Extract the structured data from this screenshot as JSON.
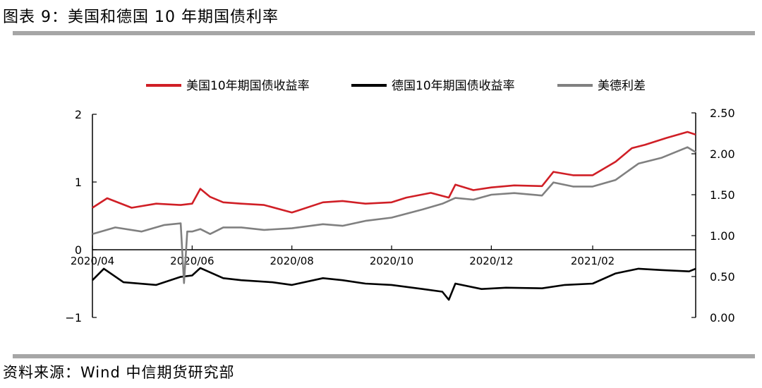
{
  "header": {
    "title": "图表 9：美国和德国 10 年期国债利率"
  },
  "footer": {
    "source": "资料来源：Wind 中信期货研究部"
  },
  "colors": {
    "us": "#d01f26",
    "de": "#000000",
    "spread": "#808080",
    "rule": "#a6a6a6"
  },
  "chart_data": {
    "type": "line",
    "series": [
      {
        "name": "美国10年期国债收益率",
        "axis": "left",
        "x": [
          "2020-04-01",
          "2020-04-10",
          "2020-04-25",
          "2020-05-10",
          "2020-05-25",
          "2020-06-01",
          "2020-06-06",
          "2020-06-12",
          "2020-06-20",
          "2020-07-01",
          "2020-07-15",
          "2020-08-01",
          "2020-08-05",
          "2020-08-20",
          "2020-09-01",
          "2020-09-15",
          "2020-10-01",
          "2020-10-10",
          "2020-10-25",
          "2020-11-05",
          "2020-11-09",
          "2020-11-20",
          "2020-12-01",
          "2020-12-15",
          "2021-01-01",
          "2021-01-08",
          "2021-01-20",
          "2021-02-01",
          "2021-02-15",
          "2021-02-25",
          "2021-03-05",
          "2021-03-18",
          "2021-03-31",
          "2021-04-05"
        ],
        "y": [
          0.62,
          0.76,
          0.62,
          0.68,
          0.66,
          0.68,
          0.9,
          0.78,
          0.7,
          0.68,
          0.66,
          0.55,
          0.58,
          0.7,
          0.72,
          0.68,
          0.7,
          0.77,
          0.84,
          0.77,
          0.96,
          0.88,
          0.92,
          0.95,
          0.94,
          1.15,
          1.1,
          1.1,
          1.3,
          1.5,
          1.55,
          1.65,
          1.74,
          1.7
        ]
      },
      {
        "name": "德国10年期国债收益率",
        "axis": "left",
        "x": [
          "2020-04-01",
          "2020-04-08",
          "2020-04-20",
          "2020-05-10",
          "2020-05-25",
          "2020-06-01",
          "2020-06-06",
          "2020-06-20",
          "2020-07-01",
          "2020-07-20",
          "2020-08-01",
          "2020-08-20",
          "2020-09-01",
          "2020-09-15",
          "2020-10-01",
          "2020-10-20",
          "2020-11-01",
          "2020-11-05",
          "2020-11-09",
          "2020-11-25",
          "2020-12-10",
          "2021-01-01",
          "2021-01-15",
          "2021-02-01",
          "2021-02-15",
          "2021-03-01",
          "2021-03-15",
          "2021-04-01",
          "2021-04-05"
        ],
        "y": [
          -0.45,
          -0.28,
          -0.48,
          -0.52,
          -0.4,
          -0.38,
          -0.27,
          -0.42,
          -0.45,
          -0.48,
          -0.52,
          -0.42,
          -0.45,
          -0.5,
          -0.52,
          -0.58,
          -0.62,
          -0.74,
          -0.5,
          -0.58,
          -0.56,
          -0.57,
          -0.52,
          -0.5,
          -0.35,
          -0.28,
          -0.3,
          -0.32,
          -0.28
        ]
      },
      {
        "name": "美德利差",
        "axis": "right",
        "x": [
          "2020-04-01",
          "2020-04-15",
          "2020-05-01",
          "2020-05-15",
          "2020-05-25",
          "2020-05-27",
          "2020-05-29",
          "2020-06-01",
          "2020-06-06",
          "2020-06-12",
          "2020-06-20",
          "2020-07-01",
          "2020-07-15",
          "2020-08-01",
          "2020-08-20",
          "2020-09-01",
          "2020-09-15",
          "2020-10-01",
          "2020-10-20",
          "2020-11-01",
          "2020-11-09",
          "2020-11-20",
          "2020-12-01",
          "2020-12-15",
          "2021-01-01",
          "2021-01-08",
          "2021-01-20",
          "2021-02-01",
          "2021-02-15",
          "2021-03-01",
          "2021-03-15",
          "2021-03-31",
          "2021-04-05"
        ],
        "y": [
          1.02,
          1.1,
          1.05,
          1.13,
          1.15,
          0.42,
          1.05,
          1.05,
          1.08,
          1.02,
          1.1,
          1.1,
          1.07,
          1.09,
          1.14,
          1.12,
          1.18,
          1.22,
          1.32,
          1.39,
          1.46,
          1.44,
          1.5,
          1.52,
          1.49,
          1.65,
          1.6,
          1.6,
          1.68,
          1.88,
          1.95,
          2.08,
          2.02
        ]
      }
    ],
    "x_ticks": [
      "2020/04",
      "2020/06",
      "2020/08",
      "2020/10",
      "2020/12",
      "2021/02"
    ],
    "y_left": {
      "ticks": [
        "2",
        "1",
        "0",
        "−1"
      ],
      "range": [
        -1,
        2
      ]
    },
    "y_right": {
      "ticks": [
        "2.50",
        "2.00",
        "1.50",
        "1.00",
        "0.50",
        "0.00"
      ],
      "range": [
        0,
        2.5
      ]
    },
    "x_range": [
      "2020-04-01",
      "2021-04-05"
    ],
    "legend_position": "top"
  }
}
